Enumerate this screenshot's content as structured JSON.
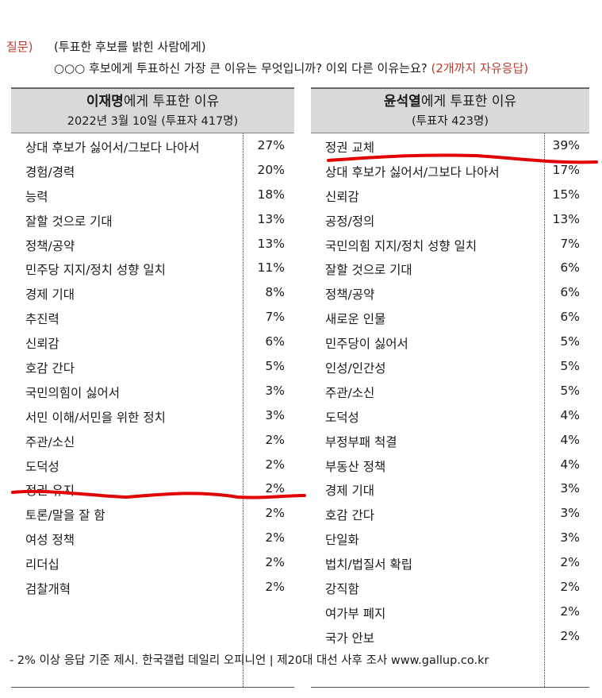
{
  "question": {
    "label": "질문)",
    "line1": "(투표한 후보를 밝힌 사람에게)",
    "line2": "○○○ 후보에게 투표하신 가장 큰 이유는 무엇입니까? 이외 다른 이유는요?",
    "note": "(2개까지 자유응답)"
  },
  "left": {
    "title_bold": "이재명",
    "title_rest": "에게 투표한 이유",
    "subtitle": "2022년 3월 10일 (투표자 417명)",
    "rows": [
      {
        "reason": "상대 후보가 싫어서/그보다 나아서",
        "pct": "27%"
      },
      {
        "reason": "경험/경력",
        "pct": "20%"
      },
      {
        "reason": "능력",
        "pct": "18%"
      },
      {
        "reason": "잘할 것으로 기대",
        "pct": "13%"
      },
      {
        "reason": "정책/공약",
        "pct": "13%"
      },
      {
        "reason": "민주당 지지/정치 성향 일치",
        "pct": "11%"
      },
      {
        "reason": "경제 기대",
        "pct": "8%"
      },
      {
        "reason": "추진력",
        "pct": "7%"
      },
      {
        "reason": "신뢰감",
        "pct": "6%"
      },
      {
        "reason": "호감 간다",
        "pct": "5%"
      },
      {
        "reason": "국민의힘이 싫어서",
        "pct": "3%"
      },
      {
        "reason": "서민 이해/서민을 위한 정치",
        "pct": "3%"
      },
      {
        "reason": "주관/소신",
        "pct": "2%"
      },
      {
        "reason": "도덕성",
        "pct": "2%"
      },
      {
        "reason": "정권 유지",
        "pct": "2%"
      },
      {
        "reason": "토론/말을 잘 함",
        "pct": "2%"
      },
      {
        "reason": "여성 정책",
        "pct": "2%"
      },
      {
        "reason": "리더십",
        "pct": "2%"
      },
      {
        "reason": "검찰개혁",
        "pct": "2%"
      }
    ]
  },
  "right": {
    "title_bold": "윤석열",
    "title_rest": "에게 투표한 이유",
    "subtitle": "(투표자 423명)",
    "rows": [
      {
        "reason": "정권 교체",
        "pct": "39%"
      },
      {
        "reason": "상대 후보가 싫어서/그보다 나아서",
        "pct": "17%"
      },
      {
        "reason": "신뢰감",
        "pct": "15%"
      },
      {
        "reason": "공정/정의",
        "pct": "13%"
      },
      {
        "reason": "국민의힘 지지/정치 성향 일치",
        "pct": "7%"
      },
      {
        "reason": "잘할 것으로 기대",
        "pct": "6%"
      },
      {
        "reason": "정책/공약",
        "pct": "6%"
      },
      {
        "reason": "새로운 인물",
        "pct": "6%"
      },
      {
        "reason": "민주당이 싫어서",
        "pct": "5%"
      },
      {
        "reason": "인성/인간성",
        "pct": "5%"
      },
      {
        "reason": "주관/소신",
        "pct": "5%"
      },
      {
        "reason": "도덕성",
        "pct": "4%"
      },
      {
        "reason": "부정부패 척결",
        "pct": "4%"
      },
      {
        "reason": "부동산 정책",
        "pct": "4%"
      },
      {
        "reason": "경제 기대",
        "pct": "3%"
      },
      {
        "reason": "호감 간다",
        "pct": "3%"
      },
      {
        "reason": "단일화",
        "pct": "3%"
      },
      {
        "reason": "법치/법질서 확립",
        "pct": "2%"
      },
      {
        "reason": "강직함",
        "pct": "2%"
      },
      {
        "reason": "여가부 폐지",
        "pct": "2%"
      },
      {
        "reason": "국가 안보",
        "pct": "2%"
      }
    ]
  },
  "footer": "- 2% 이상 응답 기준 제시. 한국갤럽 데일리 오피니언 | 제20대 대선 사후 조사 www.gallup.co.kr",
  "colors": {
    "accent": "#c0392b",
    "annotation": "#e00000",
    "header_bg": "#d9d9d9"
  }
}
